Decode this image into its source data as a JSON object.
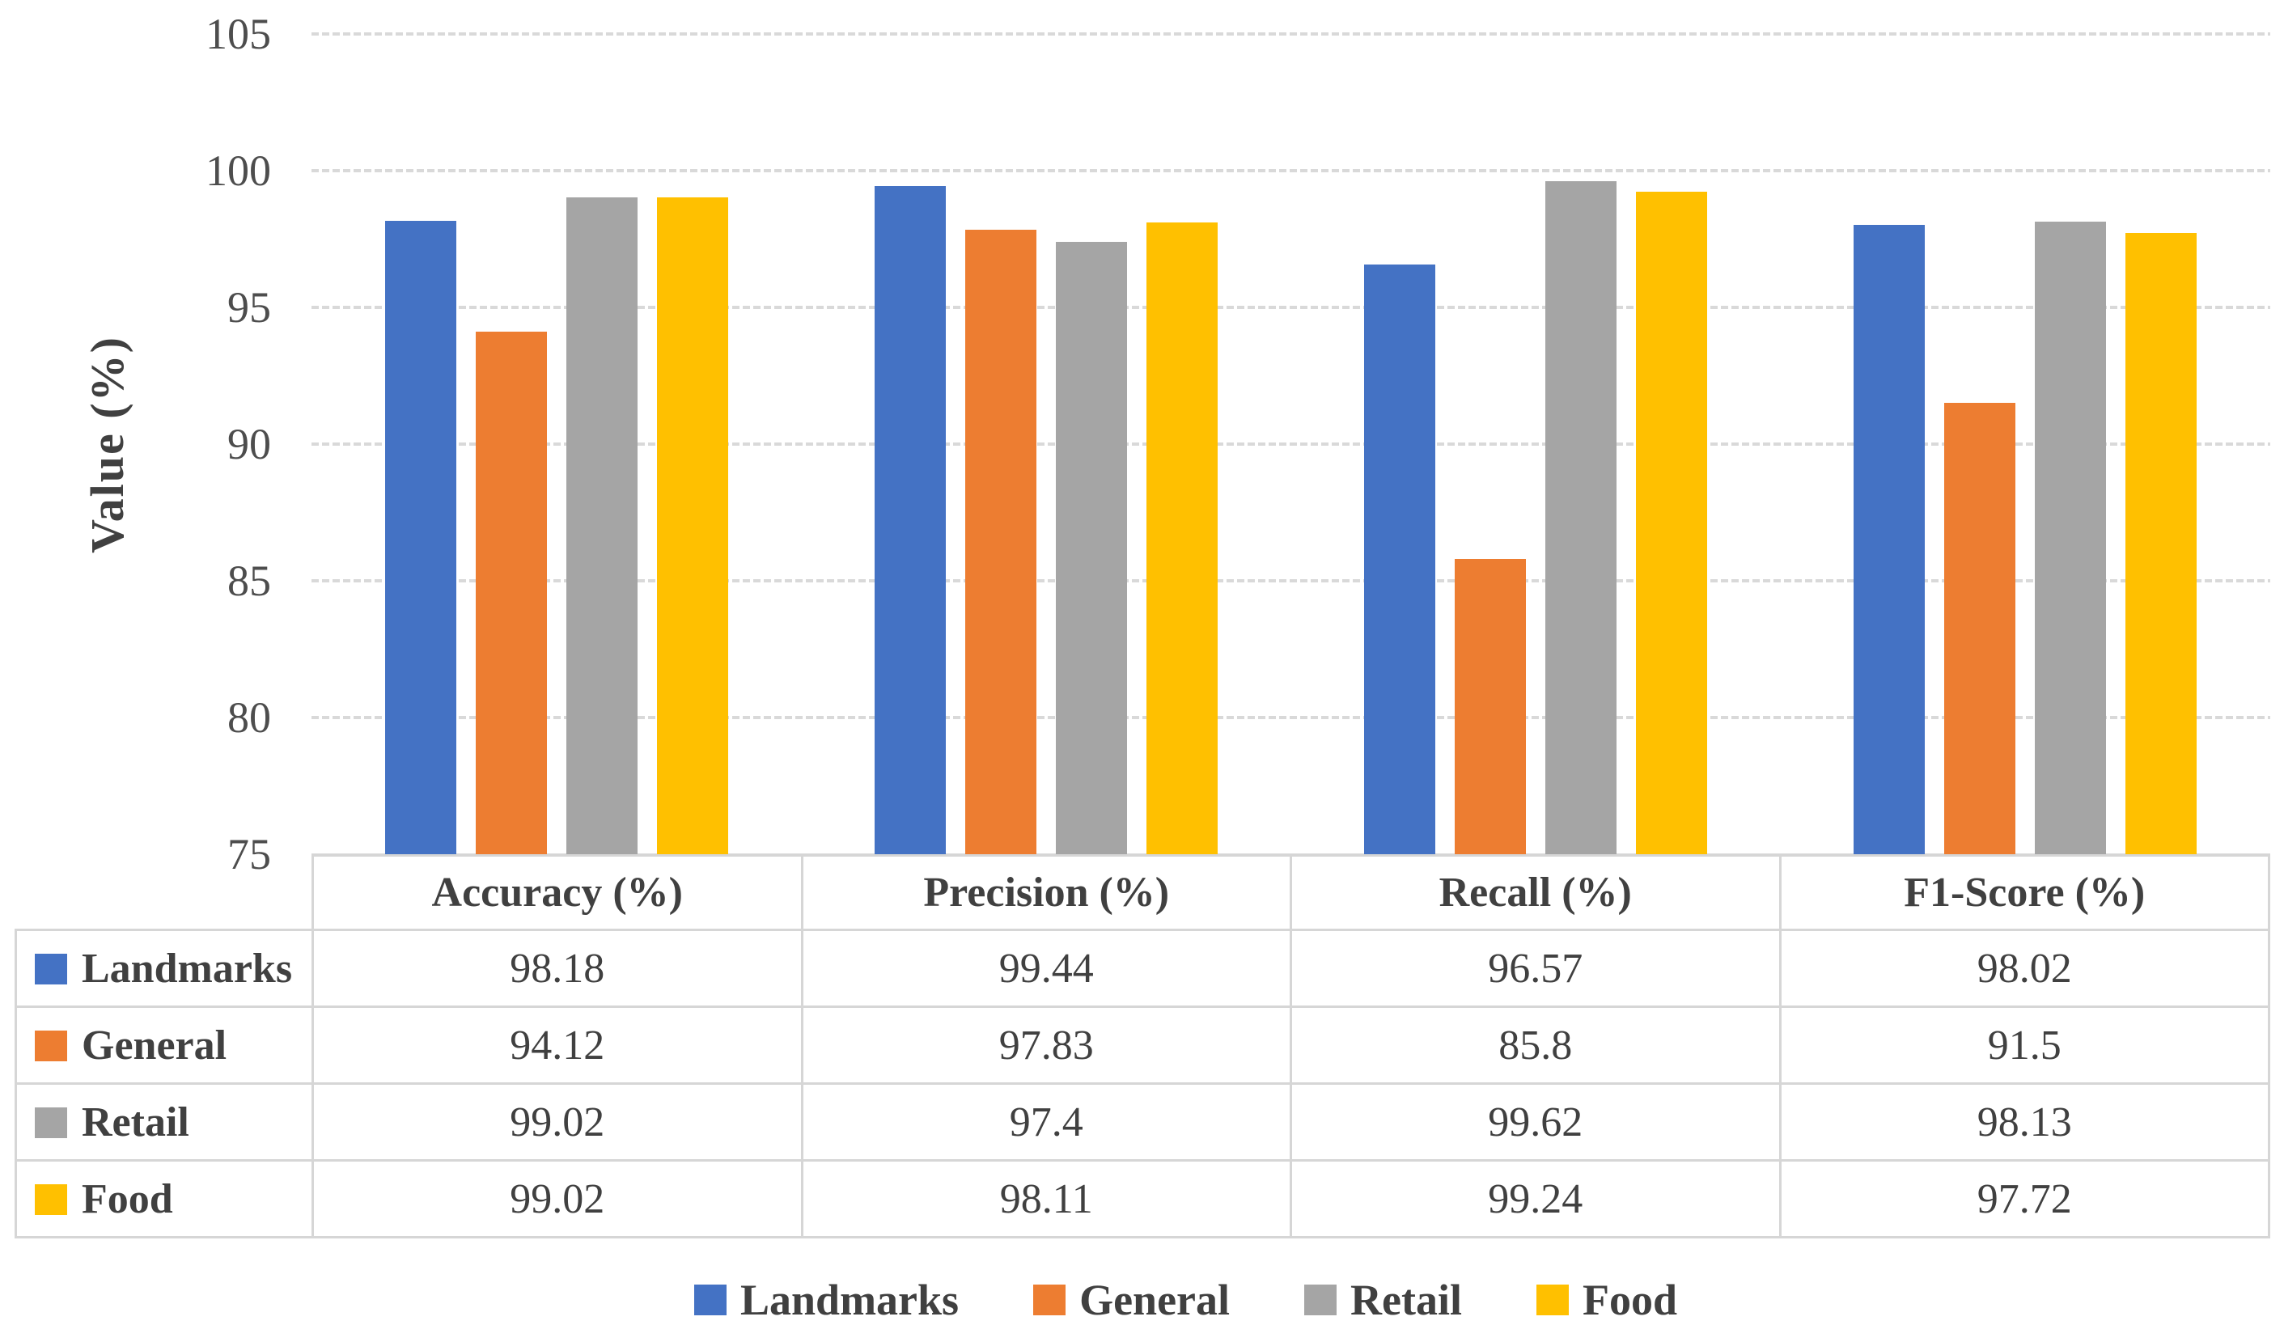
{
  "chart_data": {
    "type": "bar",
    "title": "",
    "ylabel": "Value (%)",
    "ylim": [
      75,
      105
    ],
    "yticks": [
      105,
      100,
      95,
      90,
      85,
      80,
      75
    ],
    "grid": true,
    "legend_position": "bottom",
    "has_data_table": true,
    "categories": [
      "Accuracy (%)",
      "Precision (%)",
      "Recall (%)",
      "F1-Score (%)"
    ],
    "series": [
      {
        "name": "Landmarks",
        "color": "#4472C4",
        "values": [
          98.18,
          99.44,
          96.57,
          98.02
        ]
      },
      {
        "name": "General",
        "color": "#ED7D31",
        "values": [
          94.12,
          97.83,
          85.8,
          91.5
        ]
      },
      {
        "name": "Retail",
        "color": "#A5A5A5",
        "values": [
          99.02,
          97.4,
          99.62,
          98.13
        ]
      },
      {
        "name": "Food",
        "color": "#FFC000",
        "values": [
          99.02,
          98.11,
          99.24,
          97.72
        ]
      }
    ]
  },
  "colors": {
    "gridline": "#D9D9D9",
    "table_border": "#D6D6D6",
    "text": "#404040",
    "tick_text": "#4D4D4D",
    "background": "#FFFFFF"
  }
}
